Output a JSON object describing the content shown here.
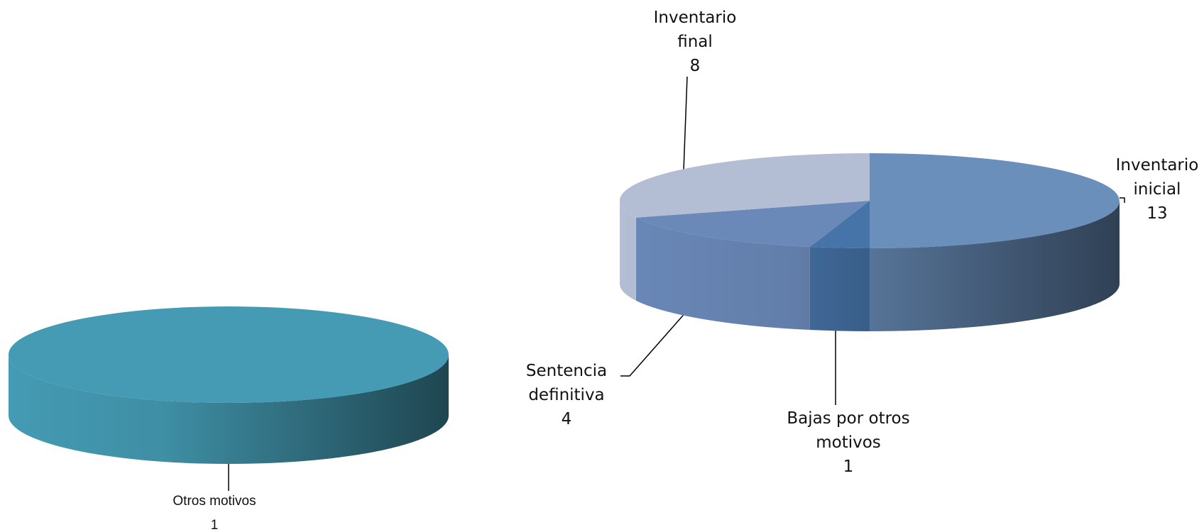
{
  "chart_data": [
    {
      "type": "pie",
      "categories": [
        "Otros motivos"
      ],
      "values": [
        1
      ],
      "colors": [
        "#449bb3"
      ]
    },
    {
      "type": "pie",
      "categories": [
        "Inventario inicial",
        "Bajas por otros motivos",
        "Sentencia definitiva",
        "Inventario final"
      ],
      "values": [
        13,
        1,
        4,
        8
      ],
      "colors": [
        "#6a8fbb",
        "#4673a8",
        "#6a88b8",
        "#b3bdd3"
      ]
    }
  ]
}
